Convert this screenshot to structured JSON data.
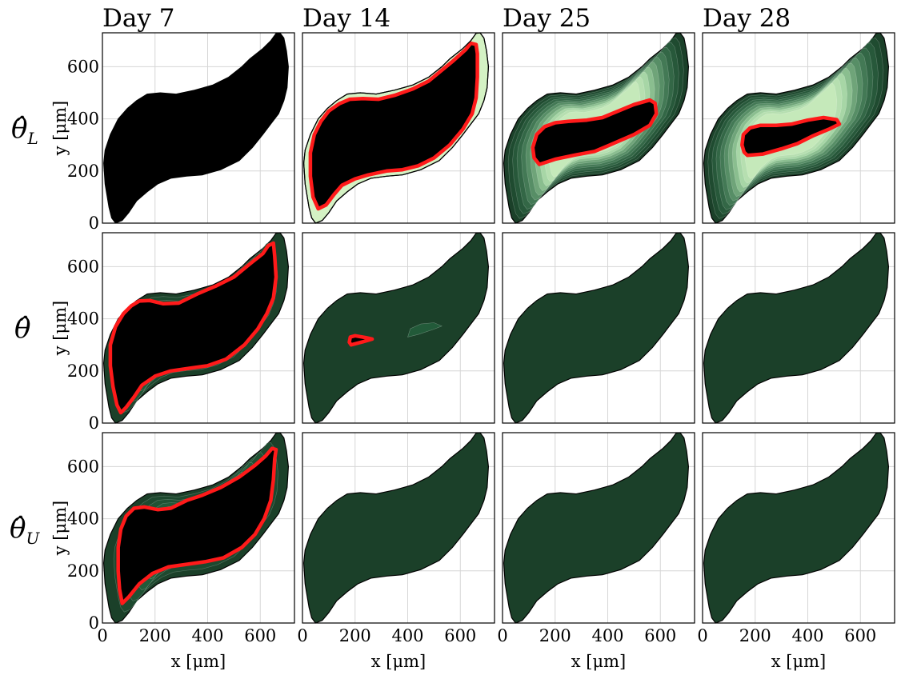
{
  "chart_data": {
    "type": "heatmap",
    "columns": [
      "Day 7",
      "Day 14",
      "Day 25",
      "Day 28"
    ],
    "rows": [
      {
        "symbol": "θ̂",
        "subscript": "L"
      },
      {
        "symbol": "θ̂",
        "subscript": ""
      },
      {
        "symbol": "θ̂",
        "subscript": "U"
      }
    ],
    "xlabel": "x [μm]",
    "ylabel": "y [μm]",
    "x_ticks": [
      0,
      200,
      400,
      600
    ],
    "y_ticks": [
      0,
      200,
      400,
      600
    ],
    "xlim": [
      0,
      730
    ],
    "ylim": [
      0,
      730
    ],
    "grid": true,
    "outline_um": [
      [
        50,
        0
      ],
      [
        75,
        10
      ],
      [
        100,
        40
      ],
      [
        130,
        85
      ],
      [
        170,
        120
      ],
      [
        210,
        150
      ],
      [
        260,
        172
      ],
      [
        320,
        180
      ],
      [
        380,
        185
      ],
      [
        450,
        205
      ],
      [
        520,
        240
      ],
      [
        570,
        290
      ],
      [
        610,
        340
      ],
      [
        640,
        380
      ],
      [
        670,
        420
      ],
      [
        690,
        470
      ],
      [
        702,
        520
      ],
      [
        707,
        600
      ],
      [
        700,
        660
      ],
      [
        690,
        710
      ],
      [
        675,
        730
      ],
      [
        660,
        728
      ],
      [
        640,
        700
      ],
      [
        610,
        670
      ],
      [
        560,
        630
      ],
      [
        530,
        600
      ],
      [
        480,
        560
      ],
      [
        420,
        530
      ],
      [
        350,
        510
      ],
      [
        280,
        495
      ],
      [
        220,
        500
      ],
      [
        170,
        495
      ],
      [
        130,
        470
      ],
      [
        95,
        440
      ],
      [
        60,
        400
      ],
      [
        30,
        340
      ],
      [
        10,
        280
      ],
      [
        5,
        230
      ],
      [
        10,
        150
      ],
      [
        25,
        60
      ],
      [
        35,
        20
      ]
    ],
    "panels": [
      {
        "row": 0,
        "col": 0,
        "level_core": 1.0,
        "contour_um": []
      },
      {
        "row": 0,
        "col": 1,
        "level_core": 0.9,
        "contour_um": [
          [
            60,
            55
          ],
          [
            90,
            70
          ],
          [
            120,
            110
          ],
          [
            150,
            145
          ],
          [
            200,
            170
          ],
          [
            250,
            185
          ],
          [
            320,
            200
          ],
          [
            380,
            205
          ],
          [
            440,
            220
          ],
          [
            500,
            250
          ],
          [
            560,
            300
          ],
          [
            610,
            360
          ],
          [
            645,
            420
          ],
          [
            660,
            480
          ],
          [
            665,
            560
          ],
          [
            665,
            650
          ],
          [
            660,
            685
          ],
          [
            640,
            690
          ],
          [
            620,
            665
          ],
          [
            570,
            620
          ],
          [
            480,
            545
          ],
          [
            420,
            515
          ],
          [
            350,
            490
          ],
          [
            290,
            475
          ],
          [
            230,
            478
          ],
          [
            180,
            475
          ],
          [
            140,
            458
          ],
          [
            100,
            430
          ],
          [
            70,
            390
          ],
          [
            45,
            340
          ],
          [
            30,
            270
          ],
          [
            30,
            180
          ],
          [
            40,
            100
          ]
        ]
      },
      {
        "row": 0,
        "col": 2,
        "level_core": 0.55,
        "contour_um": [
          [
            140,
            225
          ],
          [
            200,
            245
          ],
          [
            280,
            262
          ],
          [
            350,
            275
          ],
          [
            420,
            305
          ],
          [
            500,
            340
          ],
          [
            560,
            375
          ],
          [
            585,
            420
          ],
          [
            580,
            460
          ],
          [
            560,
            472
          ],
          [
            500,
            455
          ],
          [
            440,
            430
          ],
          [
            380,
            405
          ],
          [
            320,
            395
          ],
          [
            250,
            390
          ],
          [
            200,
            385
          ],
          [
            160,
            370
          ],
          [
            130,
            340
          ],
          [
            115,
            290
          ],
          [
            120,
            250
          ]
        ]
      },
      {
        "row": 0,
        "col": 3,
        "level_core": 0.45,
        "contour_um": [
          [
            170,
            260
          ],
          [
            230,
            265
          ],
          [
            300,
            285
          ],
          [
            360,
            305
          ],
          [
            420,
            335
          ],
          [
            480,
            360
          ],
          [
            520,
            380
          ],
          [
            510,
            397
          ],
          [
            460,
            405
          ],
          [
            400,
            395
          ],
          [
            340,
            380
          ],
          [
            280,
            375
          ],
          [
            220,
            375
          ],
          [
            180,
            365
          ],
          [
            155,
            340
          ],
          [
            150,
            300
          ],
          [
            158,
            272
          ]
        ]
      },
      {
        "row": 1,
        "col": 0,
        "level_core": 1.0,
        "contour_um": [
          [
            70,
            40
          ],
          [
            90,
            60
          ],
          [
            120,
            100
          ],
          [
            150,
            145
          ],
          [
            200,
            180
          ],
          [
            260,
            200
          ],
          [
            330,
            210
          ],
          [
            400,
            220
          ],
          [
            470,
            245
          ],
          [
            540,
            300
          ],
          [
            590,
            360
          ],
          [
            625,
            420
          ],
          [
            650,
            480
          ],
          [
            660,
            560
          ],
          [
            655,
            640
          ],
          [
            650,
            690
          ],
          [
            630,
            680
          ],
          [
            610,
            650
          ],
          [
            560,
            610
          ],
          [
            500,
            560
          ],
          [
            430,
            525
          ],
          [
            360,
            495
          ],
          [
            290,
            460
          ],
          [
            230,
            458
          ],
          [
            180,
            470
          ],
          [
            140,
            468
          ],
          [
            110,
            450
          ],
          [
            80,
            420
          ],
          [
            50,
            370
          ],
          [
            30,
            300
          ],
          [
            30,
            220
          ],
          [
            40,
            140
          ],
          [
            55,
            70
          ]
        ]
      },
      {
        "row": 1,
        "col": 1,
        "level_core": 0.15,
        "contour_um": [
          [
            185,
            300
          ],
          [
            230,
            312
          ],
          [
            265,
            322
          ],
          [
            240,
            328
          ],
          [
            200,
            335
          ],
          [
            182,
            330
          ],
          [
            178,
            310
          ]
        ]
      },
      {
        "row": 1,
        "col": 2,
        "level_core": 0.0,
        "contour_um": []
      },
      {
        "row": 1,
        "col": 3,
        "level_core": 0.0,
        "contour_um": []
      },
      {
        "row": 2,
        "col": 0,
        "level_core": 1.0,
        "contour_um": [
          [
            75,
            75
          ],
          [
            100,
            100
          ],
          [
            140,
            150
          ],
          [
            190,
            190
          ],
          [
            250,
            215
          ],
          [
            320,
            225
          ],
          [
            390,
            235
          ],
          [
            460,
            250
          ],
          [
            530,
            290
          ],
          [
            580,
            340
          ],
          [
            615,
            400
          ],
          [
            640,
            470
          ],
          [
            650,
            550
          ],
          [
            655,
            630
          ],
          [
            660,
            665
          ],
          [
            645,
            670
          ],
          [
            620,
            640
          ],
          [
            580,
            605
          ],
          [
            520,
            560
          ],
          [
            450,
            520
          ],
          [
            380,
            490
          ],
          [
            320,
            470
          ],
          [
            260,
            440
          ],
          [
            210,
            435
          ],
          [
            160,
            445
          ],
          [
            120,
            440
          ],
          [
            90,
            410
          ],
          [
            70,
            360
          ],
          [
            60,
            290
          ],
          [
            60,
            200
          ],
          [
            65,
            130
          ]
        ]
      },
      {
        "row": 2,
        "col": 1,
        "level_core": 0.0,
        "contour_um": []
      },
      {
        "row": 2,
        "col": 2,
        "level_core": 0.0,
        "contour_um": []
      },
      {
        "row": 2,
        "col": 3,
        "level_core": 0.0,
        "contour_um": []
      }
    ],
    "colors": {
      "core": "#000000",
      "outside_dark": "#1b4029",
      "green_mid": "#2e8b57",
      "green_light": "#d4f2c4",
      "contour": "#ff1a1a",
      "outline": "#000000"
    }
  }
}
